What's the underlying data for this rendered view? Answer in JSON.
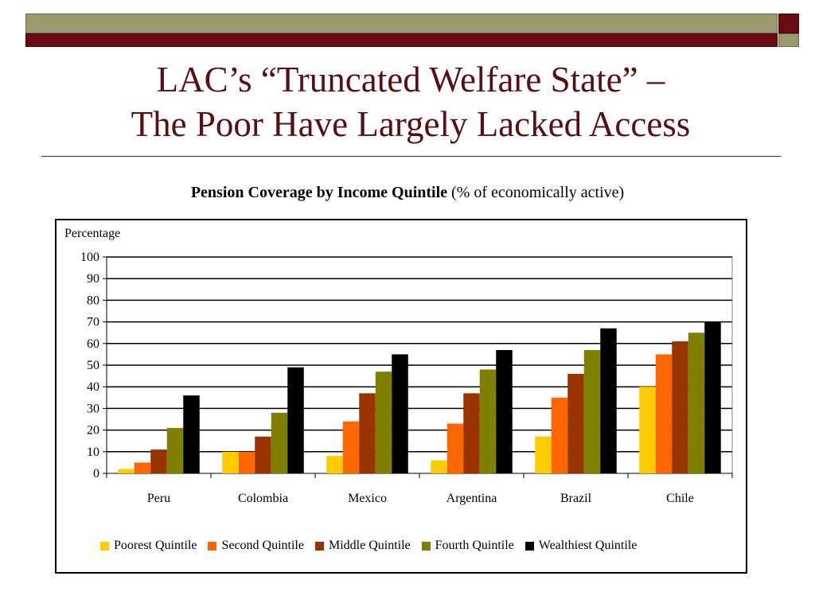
{
  "slide": {
    "title_line1": "LAC’s “Truncated Welfare State” –",
    "title_line2": "The Poor Have Largely Lacked Access"
  },
  "theme": {
    "olive": "#9c9a6c",
    "maroon": "#6b0a12",
    "title_color": "#5a0d12"
  },
  "chart_data": {
    "type": "bar",
    "title": "Pension Coverage by Income Quintile",
    "title_suffix": "(% of economically active)",
    "ylabel": "Percentage",
    "xlabel": "",
    "ylim": [
      0,
      100
    ],
    "yticks": [
      0,
      10,
      20,
      30,
      40,
      50,
      60,
      70,
      80,
      90,
      100
    ],
    "grid": true,
    "legend_position": "bottom",
    "categories": [
      "Peru",
      "Colombia",
      "Mexico",
      "Argentina",
      "Brazil",
      "Chile"
    ],
    "series": [
      {
        "name": "Poorest Quintile",
        "color": "#ffcc00",
        "values": [
          2,
          10,
          8,
          6,
          17,
          40
        ]
      },
      {
        "name": "Second Quintile",
        "color": "#ff6600",
        "values": [
          5,
          10,
          24,
          23,
          35,
          55
        ]
      },
      {
        "name": "Middle Quintile",
        "color": "#993300",
        "values": [
          11,
          17,
          37,
          37,
          46,
          61
        ]
      },
      {
        "name": "Fourth Quintile",
        "color": "#808000",
        "values": [
          21,
          28,
          47,
          48,
          57,
          65
        ]
      },
      {
        "name": "Wealthiest Quintile",
        "color": "#000000",
        "values": [
          36,
          49,
          55,
          57,
          67,
          70
        ]
      }
    ]
  }
}
